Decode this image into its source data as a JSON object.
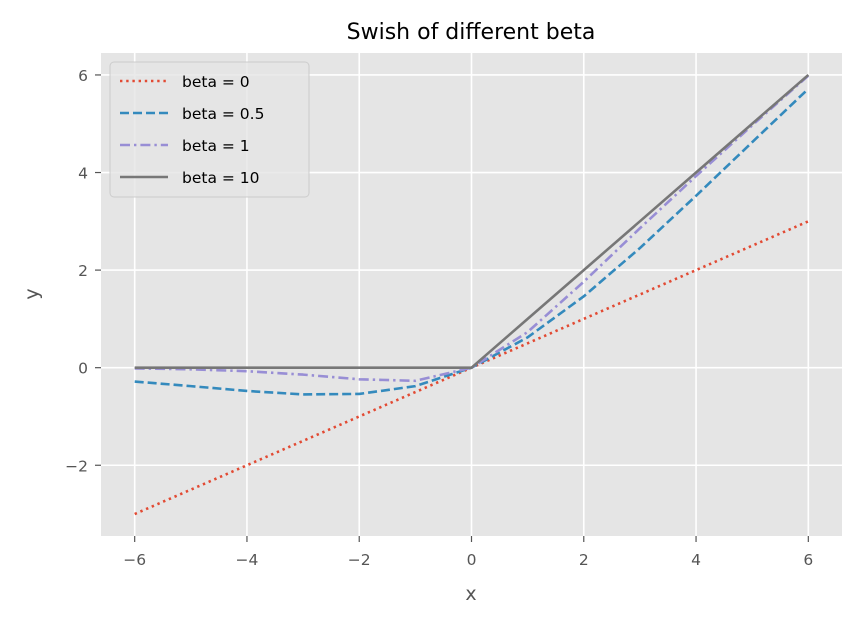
{
  "chart_data": {
    "type": "line",
    "title": "Swish of different beta",
    "xlabel": "x",
    "ylabel": "y",
    "xlim": [
      -6.6,
      6.6
    ],
    "ylim": [
      -3.45,
      6.45
    ],
    "grid": true,
    "legend_position": "top-left",
    "x_ticks": [
      -6,
      -4,
      -2,
      0,
      2,
      4,
      6
    ],
    "y_ticks": [
      -2,
      0,
      2,
      4,
      6
    ],
    "x_tick_labels": [
      "−6",
      "−4",
      "−2",
      "0",
      "2",
      "4",
      "6"
    ],
    "y_tick_labels": [
      "−2",
      "0",
      "2",
      "4",
      "6"
    ],
    "x": [
      -6,
      -5,
      -4,
      -3,
      -2,
      -1,
      0,
      1,
      2,
      3,
      4,
      5,
      6
    ],
    "series": [
      {
        "name": "beta = 0",
        "color": "#E24A33",
        "dash": "dotted",
        "values": [
          -3,
          -2.5,
          -2,
          -1.5,
          -1,
          -0.5,
          0,
          0.5,
          1,
          1.5,
          2,
          2.5,
          3
        ]
      },
      {
        "name": "beta = 0.5",
        "color": "#348ABD",
        "dash": "dashed",
        "values": [
          -0.284,
          -0.378,
          -0.477,
          -0.548,
          -0.538,
          -0.378,
          0,
          0.622,
          1.462,
          2.452,
          3.523,
          4.622,
          5.716
        ]
      },
      {
        "name": "beta = 1",
        "color": "#988ED5",
        "dash": "dashdot",
        "values": [
          -0.015,
          -0.033,
          -0.072,
          -0.142,
          -0.238,
          -0.269,
          0,
          0.731,
          1.762,
          2.858,
          3.928,
          4.967,
          5.985
        ]
      },
      {
        "name": "beta = 10",
        "color": "#777777",
        "dash": "solid",
        "values": [
          0,
          0,
          0,
          0,
          0,
          0,
          0,
          1,
          2,
          3,
          4,
          5,
          6
        ]
      }
    ]
  }
}
